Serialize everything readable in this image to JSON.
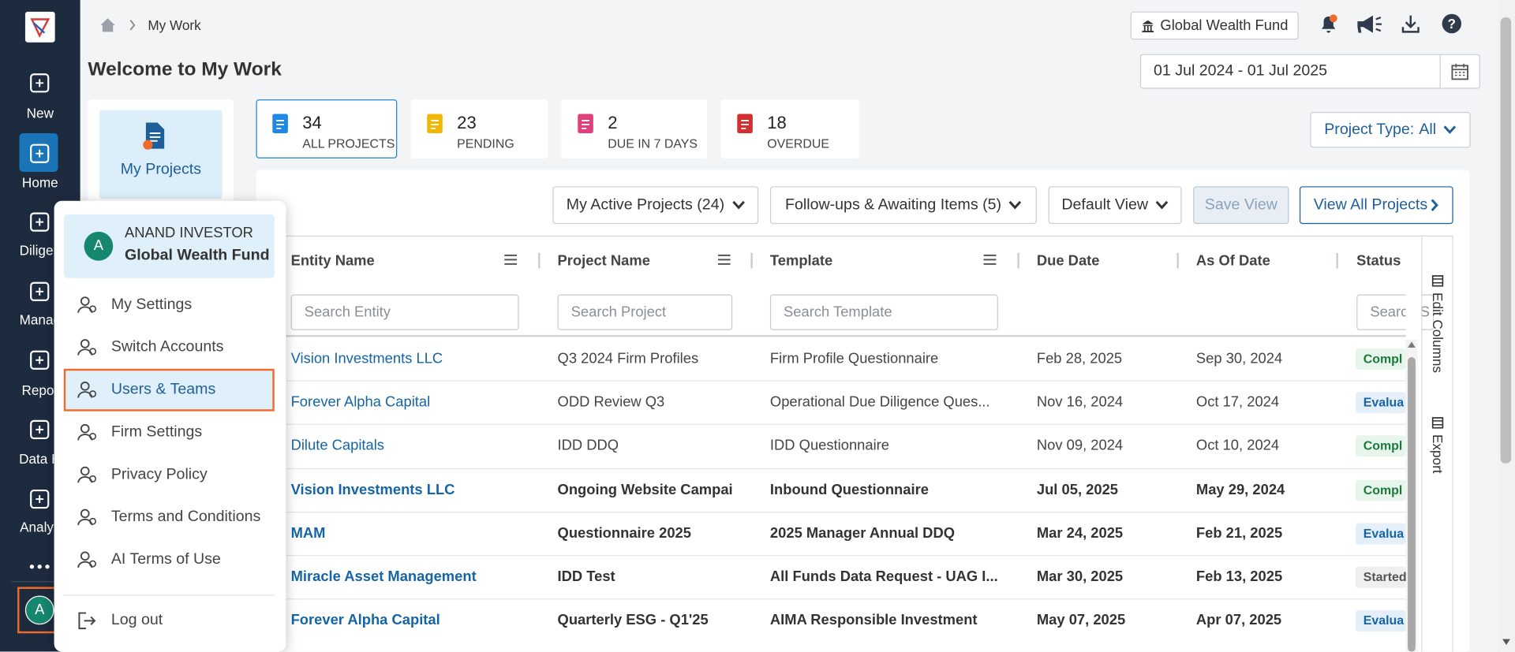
{
  "sidebar": {
    "items": [
      "New",
      "Home",
      "Diligen",
      "Manag",
      "Repor",
      "Data H",
      "Analyz"
    ],
    "active": 1,
    "avatar": "A"
  },
  "breadcrumb": [
    "My Work"
  ],
  "header": {
    "title": "Welcome to My Work",
    "account": "Global Wealth Fund",
    "date_range": "01 Jul 2024 - 01 Jul 2025"
  },
  "left_panel": {
    "label": "My Projects"
  },
  "stats": [
    {
      "value": 34,
      "label": "ALL PROJECTS",
      "color": "#1e88e5",
      "selected": true
    },
    {
      "value": 23,
      "label": "PENDING",
      "color": "#f2b705",
      "selected": false
    },
    {
      "value": 2,
      "label": "DUE IN 7 DAYS",
      "color": "#e0407b",
      "selected": false
    },
    {
      "value": 18,
      "label": "OVERDUE",
      "color": "#d32f2f",
      "selected": false
    }
  ],
  "project_type": {
    "label": "Project Type:",
    "value": "All"
  },
  "toolbar": [
    {
      "label": "My Active Projects (24)",
      "dropdown": true,
      "style": "plain"
    },
    {
      "label": "Follow-ups & Awaiting Items (5)",
      "dropdown": true,
      "style": "plain"
    },
    {
      "label": "Default View",
      "dropdown": true,
      "style": "plain"
    },
    {
      "label": "Save View",
      "dropdown": false,
      "style": "disabled"
    },
    {
      "label": "View All Projects",
      "dropdown": false,
      "style": "primary"
    }
  ],
  "table": {
    "columns": [
      {
        "name": "Entity Name",
        "search": "Search Entity"
      },
      {
        "name": "Project Name",
        "search": "Search Project"
      },
      {
        "name": "Template",
        "search": "Search Template"
      },
      {
        "name": "Due Date"
      },
      {
        "name": "As Of Date"
      },
      {
        "name": "Status",
        "search": "Search S"
      }
    ],
    "status_styles": {
      "Compl": {
        "fg": "#1b7a3a",
        "bg": "#e7f5ec"
      },
      "Evalua": {
        "fg": "#1565a6",
        "bg": "#e4eff9"
      },
      "Started": {
        "fg": "#555555",
        "bg": "#efefef"
      }
    },
    "rows": [
      {
        "cells": [
          "Vision Investments LLC",
          "Q3 2024 Firm Profiles",
          "Firm Profile Questionnaire",
          "Feb 28, 2025",
          "Sep 30, 2024",
          "Compl"
        ],
        "bold": false
      },
      {
        "cells": [
          "Forever Alpha Capital",
          "ODD Review Q3",
          "Operational Due Diligence Ques...",
          "Nov 16, 2024",
          "Oct 17, 2024",
          "Evalua"
        ],
        "bold": false
      },
      {
        "cells": [
          "Dilute Capitals",
          "IDD DDQ",
          "IDD Questionnaire",
          "Nov 09, 2024",
          "Oct 10, 2024",
          "Compl"
        ],
        "bold": false
      },
      {
        "cells": [
          "Vision Investments LLC",
          "Ongoing Website Campai",
          "Inbound Questionnaire",
          "Jul 05, 2025",
          "May 29, 2024",
          "Compl"
        ],
        "bold": true
      },
      {
        "cells": [
          "MAM",
          "Questionnaire 2025",
          "2025 Manager Annual DDQ",
          "Mar 24, 2025",
          "Feb 21, 2025",
          "Evalua"
        ],
        "bold": true
      },
      {
        "cells": [
          "Miracle Asset Management",
          "IDD Test",
          "All Funds Data Request - UAG I...",
          "Mar 30, 2025",
          "Feb 13, 2025",
          "Started"
        ],
        "bold": true
      },
      {
        "cells": [
          "Forever Alpha Capital",
          "Quarterly ESG - Q1'25",
          "AIMA Responsible Investment",
          "May 07, 2025",
          "Apr 07, 2025",
          "Evalua"
        ],
        "bold": true
      }
    ]
  },
  "side_tools": [
    "Edit Columns",
    "Export"
  ],
  "menu": {
    "avatar": "A",
    "name": "ANAND INVESTOR",
    "org": "Global Wealth Fund",
    "items": [
      "My Settings",
      "Switch Accounts",
      "Users & Teams",
      "Firm Settings",
      "Privacy Policy",
      "Terms and Conditions",
      "AI Terms of Use"
    ],
    "selected": 2,
    "logout": "Log out"
  }
}
